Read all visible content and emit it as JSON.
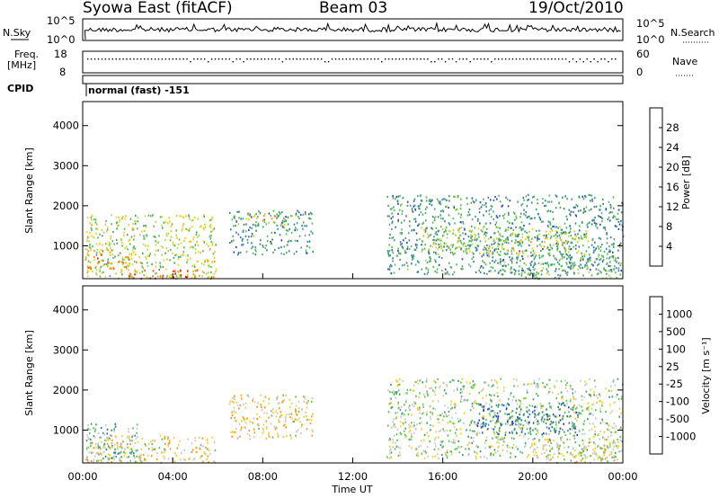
{
  "header": {
    "title_left": "Syowa East (fitACF)",
    "title_center": "Beam 03",
    "title_right": "19/Oct/2010"
  },
  "noise_panel": {
    "left_label": "N.Sky",
    "ticks_left": [
      "10^5",
      "10^0"
    ],
    "ticks_right": [
      "10^5",
      "10^0"
    ],
    "right_label": "N.Search"
  },
  "freq_panel": {
    "left_label_1": "Freq.",
    "left_label_2": "[MHz]",
    "ticks_left": [
      "18",
      "8"
    ],
    "ticks_right": [
      "60",
      "0"
    ],
    "right_label": "Nave"
  },
  "cpid_panel": {
    "label": "CPID",
    "text": "normal (fast) -151"
  },
  "power_panel": {
    "ylabel": "Slant Range [km]",
    "yticks": [
      "4000",
      "3000",
      "2000",
      "1000"
    ],
    "colorbar_label": "Power [dB]",
    "colorbar_ticks": [
      "28",
      "24",
      "20",
      "16",
      "12",
      "8",
      "4"
    ],
    "colors": [
      "#1f1fe6",
      "#2a4fa8",
      "#3a7ea0",
      "#4ba07a",
      "#5cba5c",
      "#b8d83a",
      "#f2d020",
      "#f29a18",
      "#ee5a12",
      "#e01818"
    ]
  },
  "velocity_panel": {
    "ylabel": "Slant Range [km]",
    "yticks": [
      "4000",
      "3000",
      "2000",
      "1000"
    ],
    "colorbar_label": "Velocity [m s⁻¹]",
    "colorbar_ticks": [
      "1000",
      "500",
      "100",
      "25",
      "-25",
      "-100",
      "-500",
      "-1000"
    ],
    "colors": [
      "#1f3fb8",
      "#2f6fa8",
      "#3f9a7a",
      "#5fc05a",
      "#c8c8c8",
      "#f2d22a",
      "#f29a18",
      "#ee5a12",
      "#e01818"
    ]
  },
  "xaxis": {
    "ticks": [
      "00:00",
      "04:00",
      "08:00",
      "12:00",
      "16:00",
      "20:00",
      "00:00"
    ],
    "label": "Time UT"
  },
  "chart_data": [
    {
      "type": "heatmap",
      "quantity": "Power",
      "unit": "dB",
      "x_range_hours": [
        0,
        24
      ],
      "y_range_km": [
        180,
        4600
      ],
      "color_range": [
        0,
        30
      ],
      "scatter_regions": [
        {
          "t0": 0.1,
          "t1": 5.9,
          "r0": 200,
          "r1": 1800,
          "v": 16
        },
        {
          "t0": 0.1,
          "t1": 2.2,
          "r0": 450,
          "r1": 900,
          "v": 22
        },
        {
          "t0": 1.5,
          "t1": 5.8,
          "r0": 200,
          "r1": 420,
          "v": 26
        },
        {
          "t0": 6.5,
          "t1": 10.2,
          "r0": 800,
          "r1": 1900,
          "v": 10
        },
        {
          "t0": 7.2,
          "t1": 9.6,
          "r0": 1550,
          "r1": 1850,
          "v": 17
        },
        {
          "t0": 13.5,
          "t1": 24.0,
          "r0": 300,
          "r1": 2300,
          "v": 10
        },
        {
          "t0": 15.0,
          "t1": 22.5,
          "r0": 800,
          "r1": 1500,
          "v": 16
        },
        {
          "t0": 18.5,
          "t1": 23.8,
          "r0": 200,
          "r1": 800,
          "v": 12
        }
      ]
    },
    {
      "type": "heatmap",
      "quantity": "Velocity",
      "unit": "m s⁻¹",
      "x_range_hours": [
        0,
        24
      ],
      "y_range_km": [
        180,
        4600
      ],
      "color_range": [
        -1000,
        1000
      ],
      "scatter_regions": [
        {
          "t0": 0.1,
          "t1": 2.5,
          "r0": 250,
          "r1": 1200,
          "v": 300
        },
        {
          "t0": 0.1,
          "t1": 5.9,
          "r0": 200,
          "r1": 900,
          "v": -150
        },
        {
          "t0": 6.5,
          "t1": 10.2,
          "r0": 800,
          "r1": 1900,
          "v": -200
        },
        {
          "t0": 13.5,
          "t1": 24.0,
          "r0": 300,
          "r1": 2300,
          "v": 80
        },
        {
          "t0": 17.5,
          "t1": 22.0,
          "r0": 900,
          "r1": 1700,
          "v": 600
        },
        {
          "t0": 20.5,
          "t1": 23.8,
          "r0": 200,
          "r1": 800,
          "v": -80
        }
      ]
    }
  ]
}
